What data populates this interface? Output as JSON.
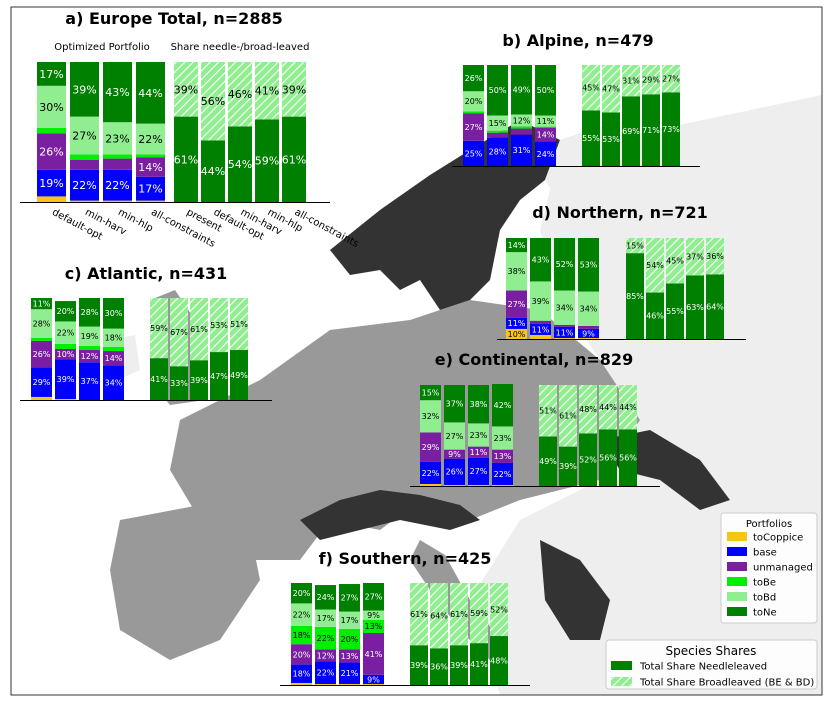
{
  "colors": {
    "toCoppice": "#f5c518",
    "base": "#0000ff",
    "unmanaged": "#7a1fa2",
    "toBe": "#00ee00",
    "toBd": "#90ee90",
    "toNe": "#008000",
    "needle": "#008000",
    "broad_fill": "#90ee90",
    "broad_hatch": "#ffffff",
    "map_sea": "#ffffff",
    "map_land_light": "#eeeeee",
    "map_land_mid": "#999999",
    "map_land_dark": "#333333"
  },
  "chart_data": [
    {
      "id": "europe",
      "type": "bar",
      "title": "a) Europe Total, n=2885",
      "subtitle_left": "Optimized Portfolio",
      "subtitle_right": "Share needle-/broad-leaved",
      "portfolio_categories": [
        "default-opt",
        "min-harv",
        "min-hlp",
        "all-constraints"
      ],
      "share_categories": [
        "present",
        "default-opt",
        "min-harv",
        "min-hlp",
        "all-constraints"
      ],
      "portfolio_series": [
        {
          "name": "toCoppice",
          "values": [
            4,
            1,
            1,
            1
          ]
        },
        {
          "name": "base",
          "values": [
            19,
            22,
            22,
            17
          ]
        },
        {
          "name": "unmanaged",
          "values": [
            26,
            7,
            8,
            14
          ]
        },
        {
          "name": "toBe",
          "values": [
            4,
            4,
            3,
            2
          ]
        },
        {
          "name": "toBd",
          "values": [
            30,
            27,
            23,
            22
          ]
        },
        {
          "name": "toNe",
          "values": [
            17,
            39,
            43,
            44
          ]
        }
      ],
      "share_series": [
        {
          "name": "Total Share Needleleaved",
          "values": [
            61,
            44,
            54,
            59,
            61
          ]
        },
        {
          "name": "Total Share Broadleaved (BE & BD)",
          "values": [
            39,
            56,
            46,
            41,
            39
          ]
        }
      ]
    },
    {
      "id": "alpine",
      "type": "bar",
      "title": "b) Alpine, n=479",
      "portfolio_series": [
        {
          "name": "toCoppice",
          "values": [
            0,
            0,
            0,
            0
          ]
        },
        {
          "name": "base",
          "values": [
            25,
            28,
            31,
            24
          ]
        },
        {
          "name": "unmanaged",
          "values": [
            27,
            5,
            6,
            14
          ]
        },
        {
          "name": "toBe",
          "values": [
            2,
            2,
            2,
            1
          ]
        },
        {
          "name": "toBd",
          "values": [
            20,
            15,
            12,
            11
          ]
        },
        {
          "name": "toNe",
          "values": [
            26,
            50,
            49,
            50
          ]
        }
      ],
      "share_series": [
        {
          "name": "Total Share Needleleaved",
          "values": [
            55,
            53,
            69,
            71,
            73
          ]
        },
        {
          "name": "Total Share Broadleaved (BE & BD)",
          "values": [
            45,
            47,
            31,
            29,
            27
          ]
        }
      ]
    },
    {
      "id": "atlantic",
      "type": "bar",
      "title": "c) Atlantic, n=431",
      "portfolio_series": [
        {
          "name": "toCoppice",
          "values": [
            3,
            1,
            0,
            0
          ]
        },
        {
          "name": "base",
          "values": [
            29,
            39,
            37,
            34
          ]
        },
        {
          "name": "unmanaged",
          "values": [
            26,
            10,
            12,
            14
          ]
        },
        {
          "name": "toBe",
          "values": [
            3,
            5,
            4,
            4
          ]
        },
        {
          "name": "toBd",
          "values": [
            28,
            22,
            19,
            18
          ]
        },
        {
          "name": "toNe",
          "values": [
            11,
            20,
            28,
            30
          ]
        }
      ],
      "share_series": [
        {
          "name": "Total Share Needleleaved",
          "values": [
            41,
            33,
            39,
            47,
            49
          ]
        },
        {
          "name": "Total Share Broadleaved (BE & BD)",
          "values": [
            59,
            67,
            61,
            53,
            51
          ]
        }
      ]
    },
    {
      "id": "northern",
      "type": "bar",
      "title": "d) Northern, n=721",
      "portfolio_series": [
        {
          "name": "toCoppice",
          "values": [
            10,
            4,
            1,
            1
          ]
        },
        {
          "name": "base",
          "values": [
            11,
            11,
            11,
            9
          ]
        },
        {
          "name": "unmanaged",
          "values": [
            27,
            3,
            2,
            3
          ]
        },
        {
          "name": "toBe",
          "values": [
            0,
            0,
            0,
            0
          ]
        },
        {
          "name": "toBd",
          "values": [
            38,
            39,
            34,
            34
          ]
        },
        {
          "name": "toNe",
          "values": [
            14,
            43,
            52,
            53
          ]
        }
      ],
      "share_series": [
        {
          "name": "Total Share Needleleaved",
          "values": [
            85,
            46,
            55,
            63,
            64
          ]
        },
        {
          "name": "Total Share Broadleaved (BE & BD)",
          "values": [
            15,
            54,
            45,
            37,
            36
          ]
        }
      ]
    },
    {
      "id": "continental",
      "type": "bar",
      "title": "e) Continental, n=829",
      "portfolio_series": [
        {
          "name": "toCoppice",
          "values": [
            2,
            1,
            1,
            1
          ]
        },
        {
          "name": "base",
          "values": [
            22,
            26,
            27,
            22
          ]
        },
        {
          "name": "unmanaged",
          "values": [
            29,
            9,
            11,
            13
          ]
        },
        {
          "name": "toBe",
          "values": [
            0,
            0,
            0,
            0
          ]
        },
        {
          "name": "toBd",
          "values": [
            32,
            27,
            23,
            23
          ]
        },
        {
          "name": "toNe",
          "values": [
            15,
            37,
            38,
            42
          ]
        }
      ],
      "share_series": [
        {
          "name": "Total Share Needleleaved",
          "values": [
            49,
            39,
            52,
            56,
            56
          ]
        },
        {
          "name": "Total Share Broadleaved (BE & BD)",
          "values": [
            51,
            61,
            48,
            44,
            44
          ]
        }
      ]
    },
    {
      "id": "southern",
      "type": "bar",
      "title": "f) Southern, n=425",
      "portfolio_series": [
        {
          "name": "toCoppice",
          "values": [
            2,
            1,
            1,
            1
          ]
        },
        {
          "name": "base",
          "values": [
            18,
            22,
            21,
            9
          ]
        },
        {
          "name": "unmanaged",
          "values": [
            20,
            12,
            13,
            41
          ]
        },
        {
          "name": "toBe",
          "values": [
            18,
            22,
            20,
            13
          ]
        },
        {
          "name": "toBd",
          "values": [
            22,
            17,
            17,
            9
          ]
        },
        {
          "name": "toNe",
          "values": [
            20,
            24,
            27,
            27
          ]
        }
      ],
      "share_series": [
        {
          "name": "Total Share Needleleaved",
          "values": [
            39,
            36,
            39,
            41,
            48
          ]
        },
        {
          "name": "Total Share Broadleaved (BE & BD)",
          "values": [
            61,
            64,
            61,
            59,
            52
          ]
        }
      ]
    }
  ],
  "legend_portfolios": {
    "title": "Portfolios",
    "items": [
      {
        "name": "toCoppice",
        "label": "toCoppice"
      },
      {
        "name": "base",
        "label": "base"
      },
      {
        "name": "unmanaged",
        "label": "unmanaged"
      },
      {
        "name": "toBe",
        "label": "toBe"
      },
      {
        "name": "toBd",
        "label": "toBd"
      },
      {
        "name": "toNe",
        "label": "toNe"
      }
    ]
  },
  "legend_species": {
    "title": "Species Shares",
    "items": [
      {
        "kind": "needle",
        "label": "Total Share Needleleaved"
      },
      {
        "kind": "broad",
        "label": "Total Share Broadleaved (BE & BD)"
      }
    ]
  }
}
